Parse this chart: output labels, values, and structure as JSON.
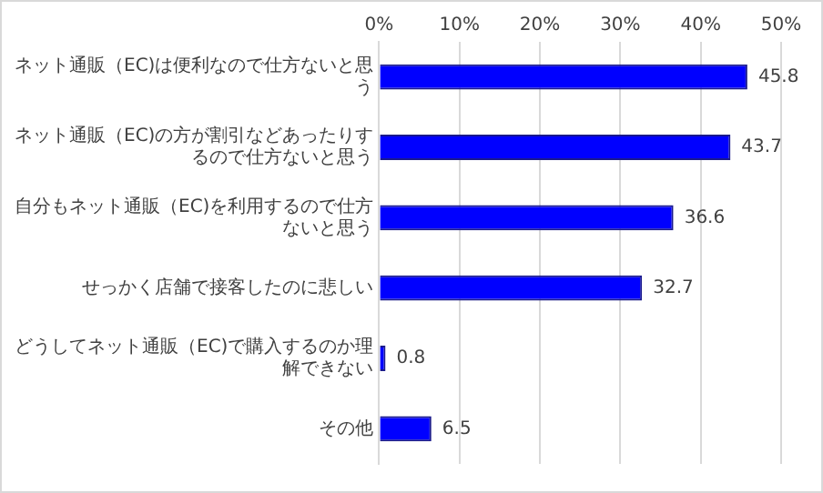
{
  "chart_data": {
    "type": "bar",
    "orientation": "horizontal",
    "categories": [
      "ネット通販（EC)は便利なので仕方ないと思う",
      "ネット通販（EC)の方が割引などあったりするので仕方ないと思う",
      "自分もネット通販（EC)を利用するので仕方ないと思う",
      "せっかく店舗で接客したのに悲しい",
      "どうしてネット通販（EC)で購入するのか理解できない",
      "その他"
    ],
    "values": [
      45.8,
      43.7,
      36.6,
      32.7,
      0.8,
      6.5
    ],
    "color": "#0000ff",
    "xlim": [
      0,
      50
    ],
    "xticks": [
      {
        "value": 0,
        "label": "0%"
      },
      {
        "value": 10,
        "label": "10%"
      },
      {
        "value": 20,
        "label": "20%"
      },
      {
        "value": 30,
        "label": "30%"
      },
      {
        "value": 40,
        "label": "40%"
      },
      {
        "value": 50,
        "label": "50%"
      }
    ],
    "grid": "x",
    "data_labels": true,
    "legend": false
  }
}
